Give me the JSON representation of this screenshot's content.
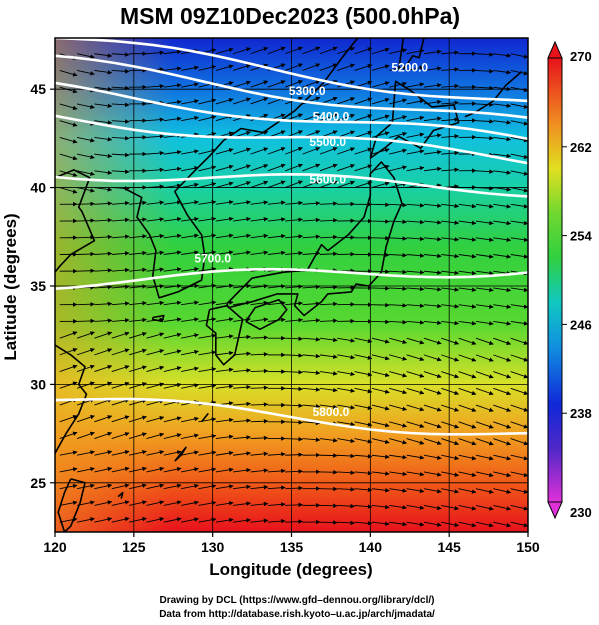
{
  "title": "MSM 09Z10Dec2023 (500.0hPa)",
  "xlabel": "Longitude (degrees)",
  "ylabel": "Latitude  (degrees)",
  "credit_line1": "Drawing by DCL (https://www.gfd–dennou.org/library/dcl/)",
  "credit_line2": "Data from http://database.rish.kyoto–u.ac.jp/arch/jmadata/",
  "map": {
    "lon_range": [
      120,
      150
    ],
    "lat_range": [
      22.5,
      47.6
    ],
    "lon_ticks": [
      "120",
      "125",
      "130",
      "135",
      "140",
      "145",
      "150"
    ],
    "lat_ticks": [
      "25",
      "30",
      "35",
      "40",
      "45"
    ],
    "shaded_field_color_range": [
      230,
      270
    ],
    "colorbar_ticks": [
      "270",
      "262",
      "254",
      "246",
      "238",
      "230"
    ],
    "colors": {
      "hot": "#e8121c",
      "orange": "#f07818",
      "yellow": "#e8e020",
      "green": "#30d030",
      "cyan": "#10c8c0",
      "blue": "#1028d8",
      "magenta": "#e030d8",
      "contour": "#ffffff",
      "coast": "#000000",
      "vector": "#000000"
    }
  },
  "contours": [
    {
      "label": "5200.0",
      "lat_start": 47.6,
      "lat_end": 44.2,
      "lon_label": 142.5,
      "lat_label": 45.9
    },
    {
      "label": "5300.0",
      "lat_start": 46.4,
      "lat_end": 43.2,
      "lon_label": 136.0,
      "lat_label": 44.7
    },
    {
      "label": "5400.0",
      "lat_start": 45.0,
      "lat_end": 42.3,
      "lon_label": 137.5,
      "lat_label": 43.4
    },
    {
      "label": "5500.0",
      "lat_start": 43.6,
      "lat_end": 41.4,
      "lon_label": 137.3,
      "lat_label": 42.1
    },
    {
      "label": "5600.0",
      "lat_start": 40.8,
      "lat_end": 39.9,
      "lon_label": 137.3,
      "lat_label": 40.2
    },
    {
      "label": "5700.0",
      "lat_start": 35.2,
      "lat_end": 35.9,
      "lon_label": 130.0,
      "lat_label": 36.2
    },
    {
      "label": "5800.0",
      "lat_start": 29.3,
      "lat_end": 27.4,
      "lon_label": 137.5,
      "lat_label": 28.4
    }
  ]
}
